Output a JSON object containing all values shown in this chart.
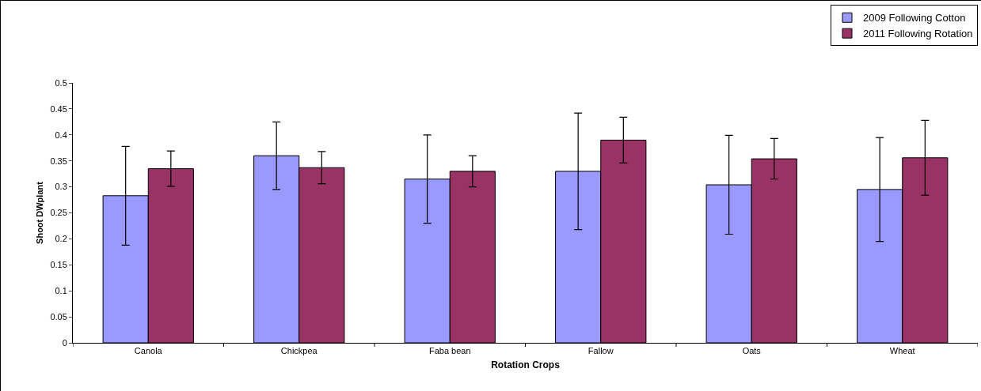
{
  "chart_data": {
    "type": "bar",
    "xlabel": "Rotation Crops",
    "ylabel": "Shoot DWplant",
    "categories": [
      "Canola",
      "Chickpea",
      "Faba bean",
      "Fallow",
      "Oats",
      "Wheat"
    ],
    "series": [
      {
        "name": "2009 Following Cotton",
        "color": "#9999ff",
        "values": [
          0.283,
          0.36,
          0.315,
          0.33,
          0.304,
          0.295
        ],
        "errors": [
          0.095,
          0.065,
          0.085,
          0.112,
          0.095,
          0.1
        ]
      },
      {
        "name": "2011 Following Rotation",
        "color": "#993366",
        "values": [
          0.335,
          0.337,
          0.33,
          0.39,
          0.354,
          0.356
        ],
        "errors": [
          0.034,
          0.031,
          0.03,
          0.044,
          0.039,
          0.072
        ]
      }
    ],
    "ylim": [
      0,
      0.5
    ],
    "yticks": [
      0,
      0.05,
      0.1,
      0.15,
      0.2,
      0.25,
      0.3,
      0.35,
      0.4,
      0.45,
      0.5
    ],
    "grid": false,
    "legend": "top right"
  }
}
